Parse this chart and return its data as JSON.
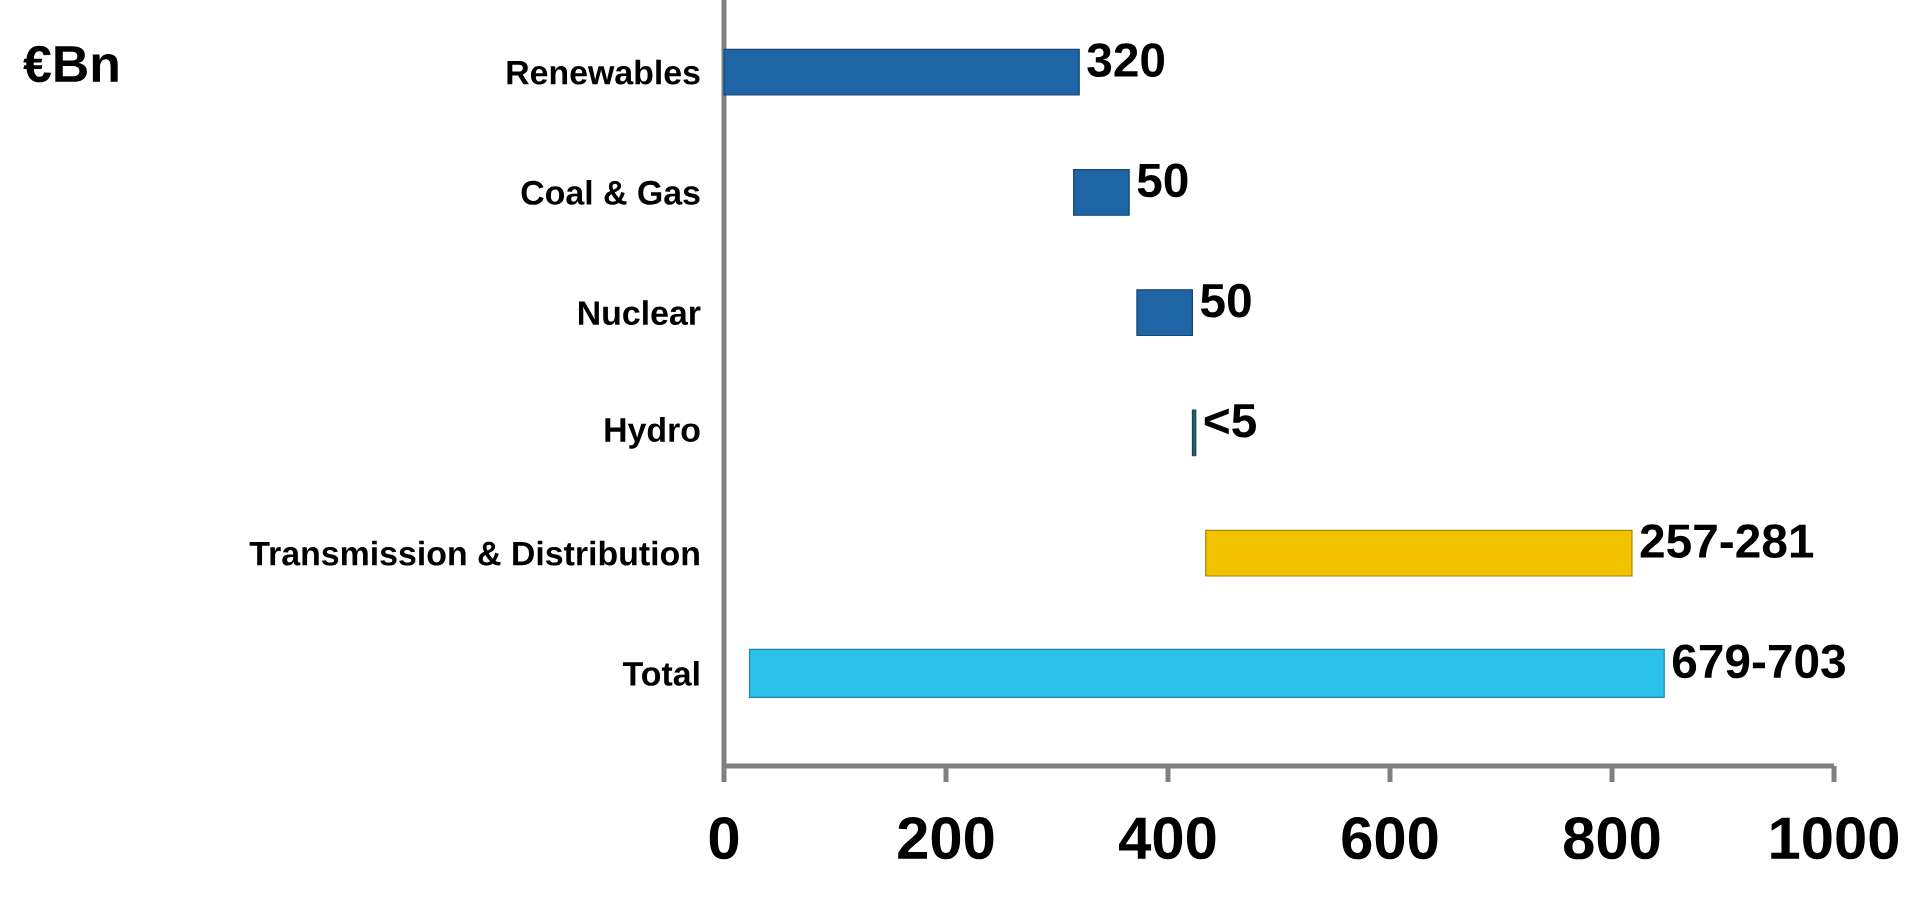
{
  "chart_data": {
    "type": "bar",
    "orientation": "horizontal",
    "ylabel": "€Bn",
    "categories": [
      "Renewables",
      "Coal & Gas",
      "Nuclear",
      "Hydro",
      "Transmission & Distribution",
      "Total"
    ],
    "values": [
      320,
      50,
      50,
      3,
      384,
      824
    ],
    "base": [
      0,
      315,
      372,
      422,
      434,
      23
    ],
    "colors": [
      "#1f65a5",
      "#1f65a5",
      "#1f65a5",
      "#1f5f6e",
      "#f2c200",
      "#2cc1ea"
    ],
    "value_labels": [
      "320",
      "50",
      "50",
      "<5",
      "257-281",
      "679-703"
    ],
    "xlim": [
      0,
      1000
    ],
    "xticks": [
      0,
      200,
      400,
      600,
      800,
      1000
    ]
  }
}
